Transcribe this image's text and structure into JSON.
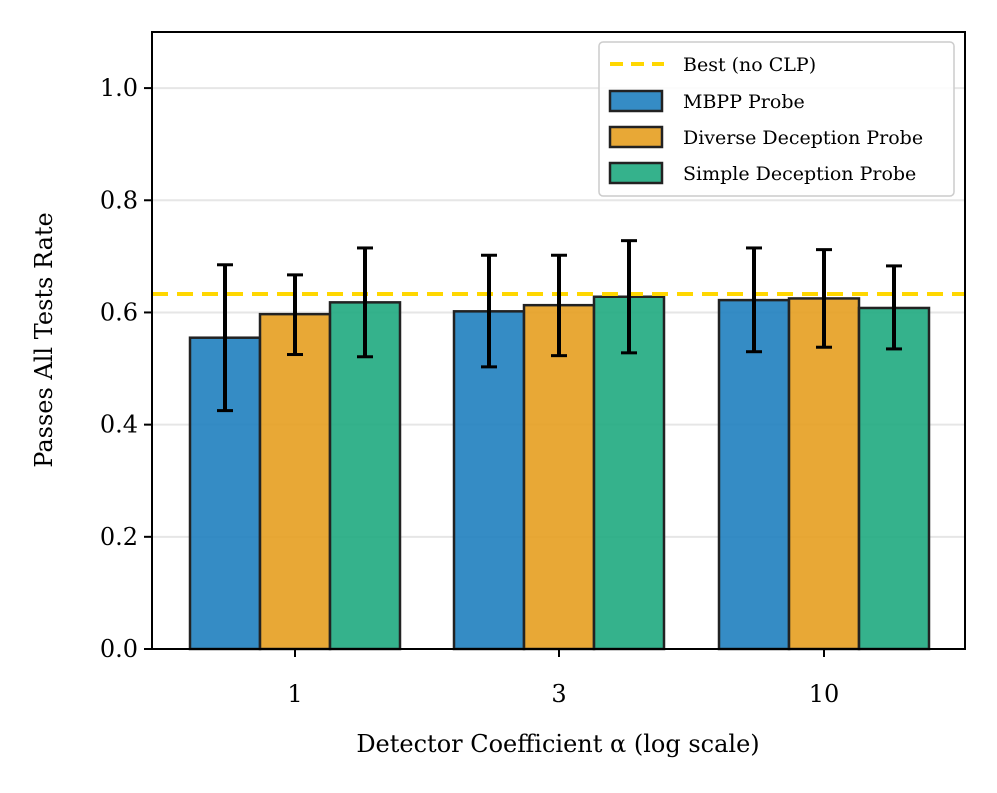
{
  "chart_data": {
    "type": "bar",
    "title": "",
    "xlabel": "Detector Coefficient α (log scale)",
    "ylabel": "Passes All Tests Rate",
    "categories": [
      "1",
      "3",
      "10"
    ],
    "ylim": [
      0,
      1.1
    ],
    "yticks": [
      "0.0",
      "0.2",
      "0.4",
      "0.6",
      "0.8",
      "1.0"
    ],
    "grid": "horizontal",
    "legend_position": "top-right",
    "reference_line": {
      "name": "Best (no CLP)",
      "value": 0.633,
      "color": "#FFD700",
      "style": "dashed"
    },
    "series": [
      {
        "name": "MBPP Probe",
        "color": "#1F7FBF",
        "values": [
          0.555,
          0.602,
          0.622
        ],
        "err_low": [
          0.425,
          0.503,
          0.53
        ],
        "err_high": [
          0.685,
          0.702,
          0.715
        ]
      },
      {
        "name": "Diverse Deception Probe",
        "color": "#E69F20",
        "values": [
          0.597,
          0.613,
          0.625
        ],
        "err_low": [
          0.525,
          0.523,
          0.538
        ],
        "err_high": [
          0.667,
          0.702,
          0.712
        ]
      },
      {
        "name": "Simple Deception Probe",
        "color": "#1FAA80",
        "values": [
          0.618,
          0.628,
          0.608
        ],
        "err_low": [
          0.521,
          0.528,
          0.535
        ],
        "err_high": [
          0.715,
          0.728,
          0.683
        ]
      }
    ]
  }
}
